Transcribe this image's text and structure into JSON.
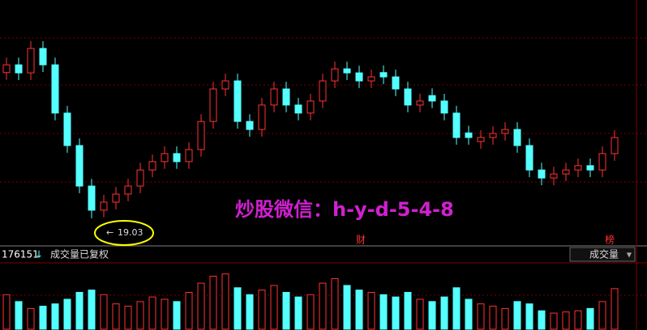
{
  "chart_data": {
    "type": "candlestick",
    "open": [
      24.1,
      24.37,
      24.09,
      24.94,
      24.37,
      22.69,
      21.56,
      20.15,
      19.31,
      19.59,
      19.87,
      20.15,
      20.71,
      21.0,
      21.28,
      21.0,
      21.42,
      22.4,
      23.53,
      23.81,
      22.4,
      22.12,
      22.97,
      23.53,
      22.97,
      22.69,
      23.11,
      23.81,
      24.23,
      24.09,
      23.81,
      24.1,
      23.95,
      23.53,
      22.97,
      23.3,
      23.11,
      22.69,
      22.0,
      21.7,
      21.84,
      21.98,
      22.12,
      21.56,
      20.71,
      20.43,
      20.57,
      20.71,
      20.86,
      20.71,
      21.28
    ],
    "high": [
      24.62,
      24.62,
      25.19,
      25.19,
      24.62,
      22.94,
      21.81,
      20.4,
      19.84,
      20.12,
      20.4,
      20.96,
      21.25,
      21.53,
      21.53,
      21.67,
      22.65,
      23.78,
      24.06,
      24.06,
      22.65,
      23.22,
      23.78,
      23.78,
      23.22,
      23.36,
      24.06,
      24.48,
      24.48,
      24.34,
      24.2,
      24.35,
      24.2,
      23.78,
      23.36,
      23.55,
      23.36,
      22.94,
      22.25,
      22.09,
      22.23,
      22.37,
      22.37,
      21.81,
      20.96,
      20.82,
      20.96,
      21.11,
      21.11,
      21.53,
      22.09
    ],
    "low": [
      23.85,
      23.84,
      23.84,
      24.12,
      22.44,
      21.31,
      19.9,
      19.03,
      19.06,
      19.34,
      19.62,
      19.9,
      20.46,
      20.75,
      20.75,
      20.75,
      21.17,
      22.15,
      23.28,
      22.15,
      21.87,
      21.87,
      22.72,
      22.72,
      22.44,
      22.44,
      22.86,
      23.56,
      23.84,
      23.56,
      23.56,
      23.7,
      23.28,
      22.72,
      22.72,
      22.86,
      22.44,
      21.59,
      21.59,
      21.45,
      21.59,
      21.73,
      21.31,
      20.46,
      20.18,
      20.18,
      20.32,
      20.46,
      20.46,
      20.46,
      21.03
    ],
    "close": [
      24.37,
      24.09,
      24.94,
      24.37,
      22.69,
      21.56,
      20.15,
      19.31,
      19.59,
      19.87,
      20.15,
      20.71,
      21.0,
      21.28,
      21.0,
      21.42,
      22.4,
      23.53,
      23.81,
      22.4,
      22.12,
      22.97,
      23.53,
      22.97,
      22.69,
      23.11,
      23.81,
      24.23,
      24.09,
      23.81,
      23.95,
      23.95,
      23.53,
      22.97,
      23.11,
      23.11,
      22.69,
      21.84,
      21.84,
      21.84,
      21.98,
      22.12,
      21.56,
      20.71,
      20.43,
      20.57,
      20.71,
      20.86,
      20.71,
      21.28,
      21.84
    ],
    "volume": [
      150000,
      120000,
      90000,
      100000,
      110000,
      130000,
      160000,
      170000,
      150000,
      110000,
      100000,
      120000,
      140000,
      130000,
      120000,
      160000,
      200000,
      230000,
      240000,
      180000,
      150000,
      170000,
      190000,
      160000,
      140000,
      150000,
      200000,
      220000,
      190000,
      170000,
      160000,
      150000,
      140000,
      160000,
      130000,
      120000,
      140000,
      180000,
      130000,
      110000,
      100000,
      90000,
      120000,
      110000,
      80000,
      70000,
      75000,
      80000,
      90000,
      120000,
      176151
    ],
    "ylim": [
      18.8,
      25.5
    ],
    "volume_ylim": [
      0,
      260000
    ],
    "up_color": "#ff3232",
    "down_color": "#54ffff",
    "volume_label": "成交量已复权",
    "volume_button": "成交量",
    "markers": [
      "财",
      "榜"
    ],
    "watermark": "炒股微信：h-y-d-5-4-8"
  }
}
